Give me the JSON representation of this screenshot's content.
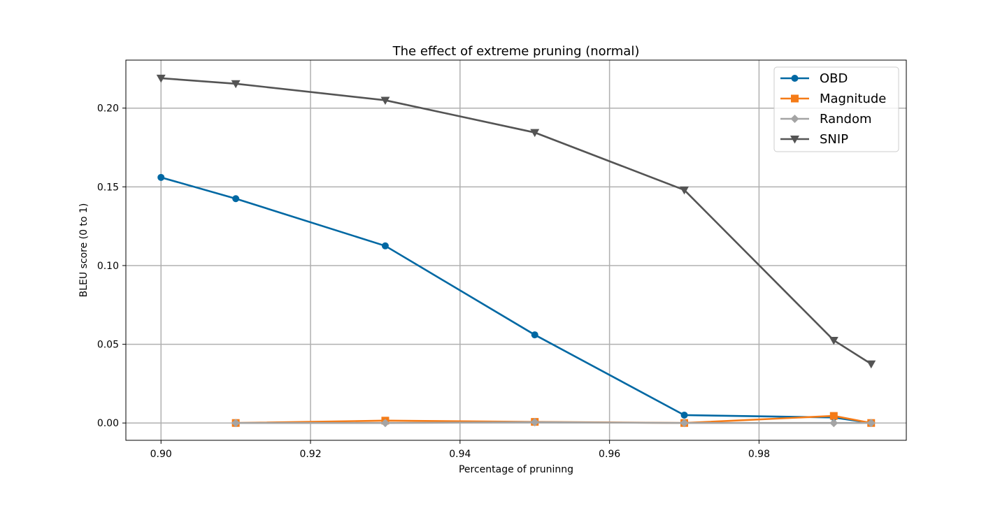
{
  "chart_data": {
    "type": "line",
    "title": "The effect of extreme pruning (normal)",
    "xlabel": "Percentage of pruninng",
    "ylabel": "BLEU score (0 to 1)",
    "xlim": [
      0.8953,
      0.9997
    ],
    "ylim": [
      -0.011,
      0.2305
    ],
    "xticks": [
      0.9,
      0.92,
      0.94,
      0.96,
      0.98
    ],
    "yticks": [
      0.0,
      0.05,
      0.1,
      0.15,
      0.2
    ],
    "xtick_labels": [
      "0.90",
      "0.92",
      "0.94",
      "0.96",
      "0.98"
    ],
    "ytick_labels": [
      "0.00",
      "0.05",
      "0.10",
      "0.15",
      "0.20"
    ],
    "grid": true,
    "legend_position": "top-right",
    "series": [
      {
        "name": "OBD",
        "color": "#0068a3",
        "marker": "circle",
        "x": [
          0.9,
          0.91,
          0.93,
          0.95,
          0.97,
          0.99,
          0.995
        ],
        "y": [
          0.156,
          0.1425,
          0.1125,
          0.056,
          0.005,
          0.0035,
          0.0
        ]
      },
      {
        "name": "Magnitude",
        "color": "#f57b17",
        "marker": "square",
        "x": [
          0.91,
          0.93,
          0.95,
          0.97,
          0.99,
          0.995
        ],
        "y": [
          0.0,
          0.0015,
          0.0007,
          0.0,
          0.0045,
          0.0
        ]
      },
      {
        "name": "Random",
        "color": "#a4a4a4",
        "marker": "diamond",
        "x": [
          0.91,
          0.93,
          0.95,
          0.97,
          0.99,
          0.995
        ],
        "y": [
          0.0,
          0.0,
          0.0005,
          0.0,
          0.0,
          0.0
        ]
      },
      {
        "name": "SNIP",
        "color": "#545454",
        "marker": "triangle-down",
        "x": [
          0.9,
          0.91,
          0.93,
          0.95,
          0.97,
          0.99,
          0.995
        ],
        "y": [
          0.219,
          0.2155,
          0.205,
          0.1845,
          0.148,
          0.0525,
          0.0375
        ]
      }
    ]
  }
}
